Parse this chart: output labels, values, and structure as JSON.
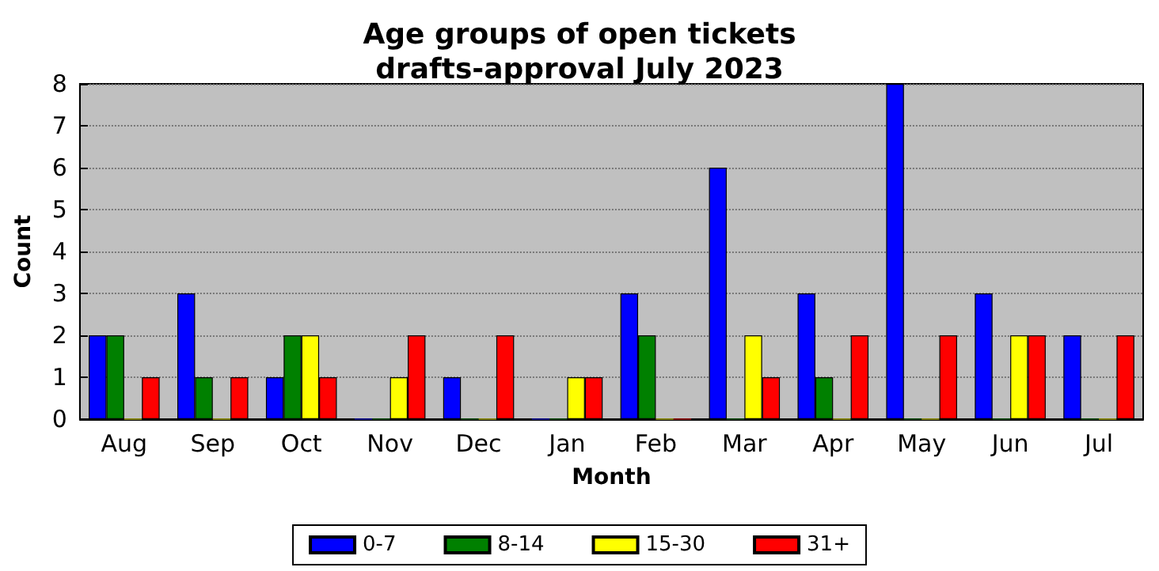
{
  "chart_data": {
    "type": "bar",
    "title": "Age groups of open tickets\ndrafts-approval July 2023",
    "xlabel": "Month",
    "ylabel": "Count",
    "categories": [
      "Aug",
      "Sep",
      "Oct",
      "Nov",
      "Dec",
      "Jan",
      "Feb",
      "Mar",
      "Apr",
      "May",
      "Jun",
      "Jul"
    ],
    "series": [
      {
        "name": "0-7",
        "color": "#0000ff",
        "values": [
          2,
          3,
          1,
          0,
          1,
          0,
          3,
          6,
          3,
          8,
          3,
          2
        ]
      },
      {
        "name": "8-14",
        "color": "#008000",
        "values": [
          2,
          1,
          2,
          0,
          0,
          0,
          2,
          0,
          1,
          0,
          0,
          0
        ]
      },
      {
        "name": "15-30",
        "color": "#ffff00",
        "values": [
          0,
          0,
          2,
          1,
          0,
          1,
          0,
          2,
          0,
          0,
          2,
          0
        ]
      },
      {
        "name": "31+",
        "color": "#ff0000",
        "values": [
          1,
          1,
          1,
          2,
          2,
          1,
          0,
          1,
          2,
          2,
          2,
          2
        ]
      }
    ],
    "ylim": [
      0,
      8
    ],
    "yticks": [
      0,
      1,
      2,
      3,
      4,
      5,
      6,
      7,
      8
    ],
    "grid": "y",
    "legend": "bottom"
  }
}
